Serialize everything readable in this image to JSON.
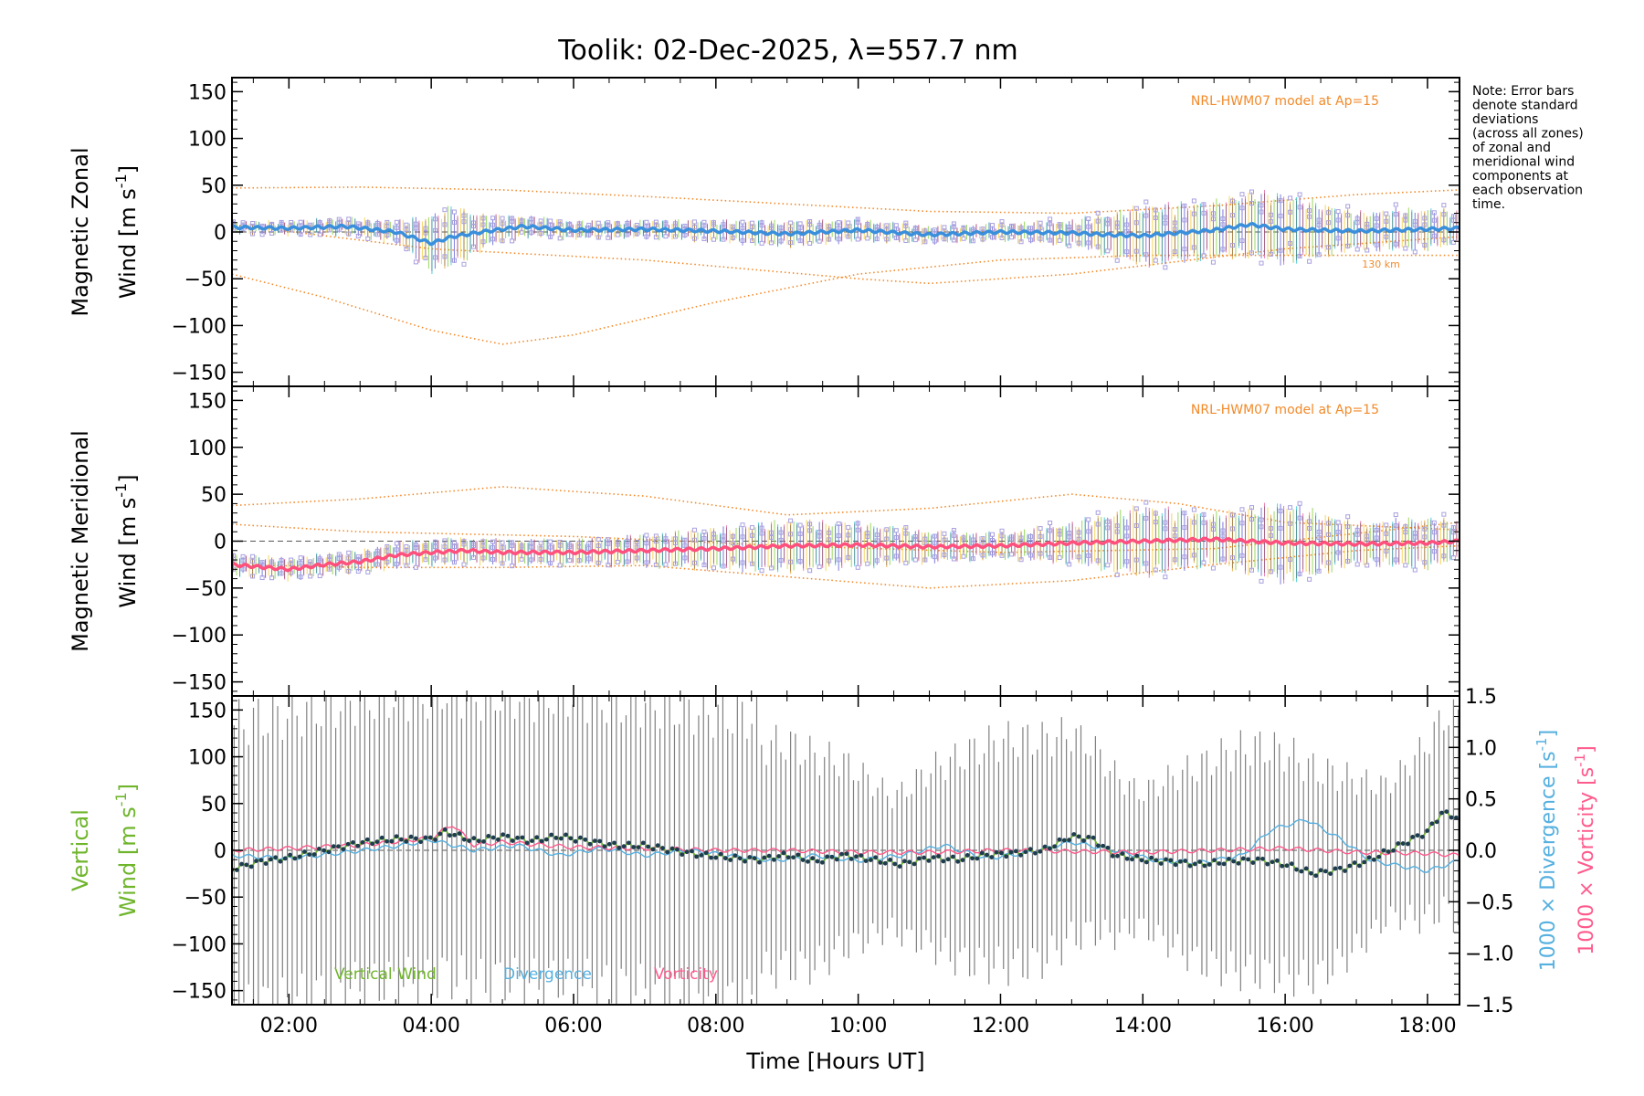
{
  "title": "Toolik: 02-Dec-2025, λ=557.7 nm",
  "note": [
    "Note: Error bars",
    "denote standard",
    "deviations",
    "(across all zones)",
    "of zonal and",
    "meridional wind",
    "components at",
    "each observation",
    "time."
  ],
  "colors": {
    "model": "#f28a2a",
    "zonal_mean": "#3a8fdc",
    "meridional_mean": "#ff4f7d",
    "vertical": "#6fb52c",
    "divergence": "#55b0e0",
    "vorticity": "#ff5a8c",
    "scatter": "#a8a0e0",
    "errorbar": "#808080",
    "axis": "#000000"
  },
  "chart_data": [
    {
      "type": "line",
      "panel": "zonal",
      "ylabel_line1": "Magnetic Zonal",
      "ylabel_line2": "Wind [m s",
      "ylabel_sup": "-1",
      "ylabel_close": "]",
      "ylim": [
        -165,
        165
      ],
      "yticks": [
        -150,
        -100,
        -50,
        0,
        50,
        100,
        150
      ],
      "yticklabels": [
        "−150",
        "−100",
        "−50",
        "0",
        "50",
        "100",
        "150"
      ],
      "xlim": [
        1.2,
        18.45
      ],
      "model_label": "NRL-HWM07 model at Ap=15",
      "model_annotation": "130 km",
      "model_series": [
        {
          "name": "upper",
          "x": [
            1.2,
            3,
            5,
            7,
            9,
            11,
            13,
            15,
            17,
            18.45
          ],
          "y": [
            47,
            48,
            45,
            38,
            30,
            22,
            20,
            28,
            40,
            45
          ]
        },
        {
          "name": "lower",
          "x": [
            1.2,
            2.5,
            4,
            5,
            6,
            8,
            10,
            12,
            14,
            16,
            18.45
          ],
          "y": [
            -45,
            -70,
            -105,
            -120,
            -110,
            -75,
            -45,
            -30,
            -25,
            -25,
            -25
          ]
        },
        {
          "name": "mid",
          "x": [
            1.2,
            4,
            7,
            10,
            11,
            13,
            16,
            18.45
          ],
          "y": [
            8,
            -18,
            -30,
            -50,
            -55,
            -45,
            -18,
            -5
          ]
        }
      ],
      "mean": {
        "x": [
          1.2,
          2,
          2.8,
          3.5,
          4.0,
          4.3,
          4.8,
          5.3,
          6,
          7,
          8,
          9,
          10,
          11,
          12,
          13,
          13.5,
          14,
          15,
          15.5,
          16,
          17,
          17.5,
          18,
          18.45
        ],
        "y": [
          5,
          4,
          6,
          0,
          -12,
          -5,
          1,
          6,
          2,
          3,
          1,
          -2,
          2,
          -3,
          0,
          -1,
          -3,
          -4,
          2,
          8,
          3,
          1,
          2,
          3,
          4
        ],
        "err": [
          5,
          6,
          8,
          10,
          28,
          30,
          15,
          10,
          8,
          8,
          10,
          12,
          10,
          8,
          8,
          12,
          20,
          30,
          28,
          32,
          35,
          18,
          20,
          20,
          16
        ]
      }
    },
    {
      "type": "line",
      "panel": "meridional",
      "ylabel_line1": "Magnetic Meridional",
      "ylabel_line2": "Wind [m s",
      "ylabel_sup": "-1",
      "ylabel_close": "]",
      "ylim": [
        -165,
        165
      ],
      "yticks": [
        -150,
        -100,
        -50,
        0,
        50,
        100,
        150
      ],
      "yticklabels": [
        "−150",
        "−100",
        "−50",
        "0",
        "50",
        "100",
        "150"
      ],
      "xlim": [
        1.2,
        18.45
      ],
      "model_label": "NRL-HWM07 model at Ap=15",
      "model_series": [
        {
          "name": "upper",
          "x": [
            1.2,
            3,
            5,
            7,
            9,
            11,
            13,
            14.5,
            16,
            18.45
          ],
          "y": [
            38,
            45,
            58,
            48,
            28,
            35,
            50,
            40,
            20,
            12
          ]
        },
        {
          "name": "lower",
          "x": [
            1.2,
            3,
            5,
            7,
            9,
            11,
            13,
            15,
            17,
            18.45
          ],
          "y": [
            -25,
            -28,
            -28,
            -26,
            -38,
            -50,
            -42,
            -25,
            -10,
            -5
          ]
        },
        {
          "name": "mid",
          "x": [
            1.2,
            3,
            6,
            9,
            12,
            15,
            18.45
          ],
          "y": [
            18,
            10,
            5,
            -5,
            -12,
            -8,
            20
          ]
        }
      ],
      "mean": {
        "x": [
          1.2,
          2,
          2.5,
          3,
          3.5,
          4,
          4.5,
          5,
          6,
          7,
          8,
          9,
          10,
          11,
          12,
          13,
          14,
          15,
          16,
          17,
          18,
          18.45
        ],
        "y": [
          -25,
          -30,
          -25,
          -22,
          -15,
          -12,
          -10,
          -12,
          -12,
          -10,
          -8,
          -5,
          -4,
          -6,
          -5,
          -2,
          0,
          2,
          -2,
          -3,
          -2,
          0
        ],
        "err": [
          10,
          10,
          10,
          10,
          12,
          12,
          12,
          12,
          12,
          15,
          20,
          25,
          22,
          15,
          12,
          20,
          35,
          25,
          40,
          20,
          25,
          18
        ]
      }
    },
    {
      "type": "line",
      "panel": "vertical",
      "ylabel_line1": "Vertical",
      "ylabel_line2": "Wind [m s",
      "ylabel_sup": "-1",
      "ylabel_close": "]",
      "ylim": [
        -165,
        165
      ],
      "yticks": [
        -150,
        -100,
        -50,
        0,
        50,
        100,
        150
      ],
      "yticklabels": [
        "−150",
        "−100",
        "−50",
        "0",
        "50",
        "100",
        "150"
      ],
      "y2lim": [
        -1.5,
        1.5
      ],
      "y2ticks": [
        -1.5,
        -1.0,
        -0.5,
        0.0,
        0.5,
        1.0,
        1.5
      ],
      "y2ticklabels": [
        "−1.5",
        "−1.0",
        "−0.5",
        "0.0",
        "0.5",
        "1.0",
        "1.5"
      ],
      "y2label_div": "1000 × Divergence [s",
      "y2label_vort": "1000 × Vorticity [s",
      "y2label_sup": "-1",
      "y2label_close": "]",
      "xlim": [
        1.2,
        18.45
      ],
      "xticks": [
        2,
        4,
        6,
        8,
        10,
        12,
        14,
        16,
        18
      ],
      "xticklabels": [
        "02:00",
        "04:00",
        "06:00",
        "08:00",
        "10:00",
        "12:00",
        "14:00",
        "16:00",
        "18:00"
      ],
      "xlabel": "Time [Hours UT]",
      "legend": [
        "Vertical Wind",
        "Divergence",
        "Vorticity"
      ],
      "series": [
        {
          "name": "Vertical Wind",
          "axis": "left",
          "x": [
            1.2,
            1.6,
            2.0,
            2.5,
            3.0,
            3.5,
            4.0,
            4.2,
            4.6,
            5.0,
            5.4,
            5.8,
            6.2,
            6.6,
            7.0,
            7.4,
            7.8,
            8.2,
            8.6,
            9.0,
            9.4,
            9.8,
            10.2,
            10.6,
            11.0,
            11.4,
            11.8,
            12.2,
            12.6,
            13.0,
            13.3,
            13.6,
            14.0,
            14.4,
            14.8,
            15.2,
            15.6,
            16.0,
            16.4,
            16.8,
            17.2,
            17.6,
            18.0,
            18.2,
            18.45
          ],
          "y": [
            -20,
            -12,
            -8,
            0,
            8,
            12,
            12,
            20,
            10,
            15,
            10,
            15,
            10,
            5,
            5,
            0,
            -5,
            -8,
            -10,
            -5,
            -12,
            -5,
            -10,
            -15,
            -8,
            -10,
            -5,
            -3,
            0,
            15,
            12,
            -5,
            -10,
            -12,
            -15,
            -12,
            -10,
            -15,
            -25,
            -20,
            -10,
            5,
            20,
            40,
            35
          ]
        },
        {
          "name": "Divergence",
          "axis": "right",
          "x": [
            1.2,
            2.0,
            2.8,
            3.6,
            4.0,
            4.6,
            5.2,
            5.8,
            6.4,
            7.0,
            7.6,
            8.2,
            8.8,
            9.4,
            10.0,
            10.6,
            11.2,
            11.8,
            12.4,
            13.0,
            13.6,
            14.2,
            14.8,
            15.4,
            15.8,
            16.3,
            16.8,
            17.2,
            17.6,
            18.0,
            18.45
          ],
          "y": [
            -0.05,
            -0.08,
            -0.02,
            0.05,
            0.1,
            0.0,
            0.05,
            -0.05,
            0.02,
            -0.05,
            0.0,
            -0.05,
            -0.1,
            -0.05,
            -0.1,
            -0.05,
            0.05,
            -0.08,
            -0.02,
            0.08,
            0.0,
            -0.1,
            -0.12,
            -0.05,
            0.2,
            0.3,
            0.1,
            -0.1,
            -0.15,
            -0.2,
            -0.1
          ]
        },
        {
          "name": "Vorticity",
          "axis": "right",
          "x": [
            1.2,
            2.0,
            3.0,
            4.0,
            4.3,
            4.6,
            5.0,
            6.0,
            7.0,
            8.0,
            9.0,
            10.0,
            11.0,
            12.0,
            13.0,
            14.0,
            15.0,
            16.0,
            17.0,
            18.0,
            18.45
          ],
          "y": [
            0.0,
            0.02,
            0.05,
            0.12,
            0.25,
            0.05,
            0.08,
            0.03,
            0.02,
            0.0,
            0.0,
            -0.02,
            -0.02,
            0.0,
            -0.01,
            -0.02,
            0.0,
            0.02,
            -0.02,
            -0.03,
            -0.05
          ]
        }
      ],
      "errorbar_halfwidth": 150
    }
  ]
}
